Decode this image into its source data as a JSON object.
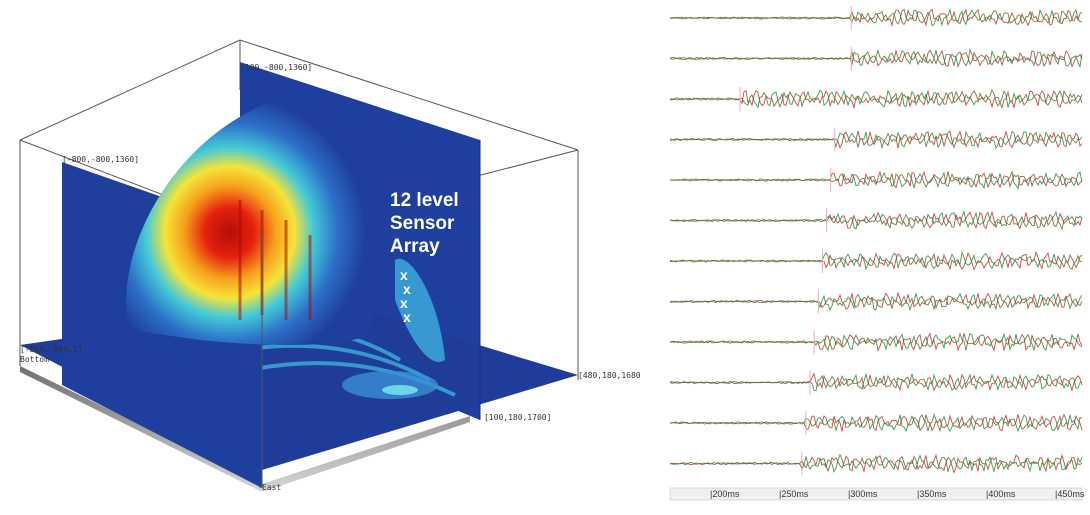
{
  "left_figure": {
    "corner_labels": {
      "top_back": "[100,-800,1360]",
      "top_left": "[-800,-800,1360]",
      "mid_left": "[-800,-800,1]",
      "mid_left_sub": "Bottom",
      "right_mid": "[480,180,1680]",
      "front_right": "[100,180,1700]",
      "front_bottom": "East"
    },
    "annotation_lines": [
      "12 level",
      "Sensor",
      "Array"
    ],
    "sensor_marker": "x",
    "sensor_count": 4,
    "colors": {
      "background_slice": "#1f3f9e",
      "hot": "#d91b0d",
      "warm": "#f6a323",
      "cool": "#36c7e0"
    }
  },
  "right_figure": {
    "trace_count": 12,
    "trace_colors": [
      "#c62828",
      "#1b8a2b"
    ],
    "x_axis_ticks": [
      "|200ms",
      "|250ms",
      "|300ms",
      "|350ms",
      "|400ms",
      "|450ms"
    ],
    "pick_fractions": [
      0.44,
      0.44,
      0.17,
      0.4,
      0.39,
      0.38,
      0.37,
      0.36,
      0.35,
      0.34,
      0.33,
      0.32
    ]
  }
}
